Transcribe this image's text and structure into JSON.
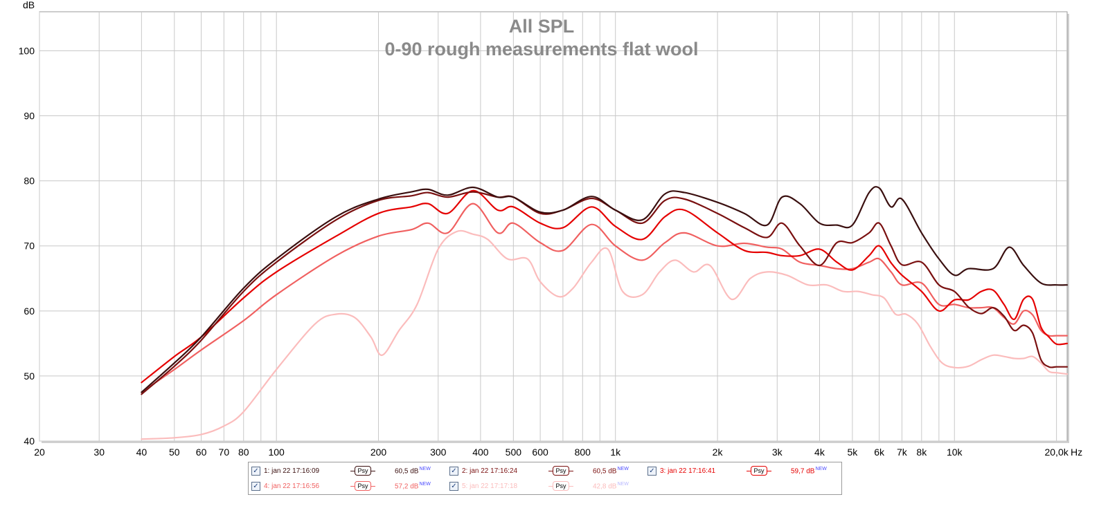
{
  "chart_data": {
    "type": "line",
    "title": "All SPL",
    "subtitle": "0-90 rough measurements flat wool",
    "ylabel": "dB",
    "xlabel": "Hz",
    "x_scale": "log",
    "xlim": [
      20,
      21500
    ],
    "ylim": [
      40,
      106
    ],
    "grid": true,
    "y_ticks": [
      40,
      50,
      60,
      70,
      80,
      90,
      100
    ],
    "x_ticks": [
      {
        "v": 20,
        "label": "20"
      },
      {
        "v": 30,
        "label": "30"
      },
      {
        "v": 40,
        "label": "40"
      },
      {
        "v": 50,
        "label": "50"
      },
      {
        "v": 60,
        "label": "60"
      },
      {
        "v": 70,
        "label": "70"
      },
      {
        "v": 80,
        "label": "80"
      },
      {
        "v": 90,
        "label": ""
      },
      {
        "v": 100,
        "label": "100"
      },
      {
        "v": 200,
        "label": "200"
      },
      {
        "v": 300,
        "label": "300"
      },
      {
        "v": 400,
        "label": "400"
      },
      {
        "v": 500,
        "label": "500"
      },
      {
        "v": 600,
        "label": "600"
      },
      {
        "v": 700,
        "label": ""
      },
      {
        "v": 800,
        "label": "800"
      },
      {
        "v": 900,
        "label": ""
      },
      {
        "v": 1000,
        "label": "1k"
      },
      {
        "v": 2000,
        "label": "2k"
      },
      {
        "v": 3000,
        "label": "3k"
      },
      {
        "v": 4000,
        "label": "4k"
      },
      {
        "v": 5000,
        "label": "5k"
      },
      {
        "v": 6000,
        "label": "6k"
      },
      {
        "v": 7000,
        "label": "7k"
      },
      {
        "v": 8000,
        "label": "8k"
      },
      {
        "v": 9000,
        "label": ""
      },
      {
        "v": 10000,
        "label": "10k"
      },
      {
        "v": 20000,
        "label": "20,0k"
      }
    ],
    "series": [
      {
        "name": "1: jan 22 17:16:09",
        "color": "#3a0f0f",
        "x": [
          40,
          50,
          60,
          80,
          100,
          150,
          200,
          250,
          280,
          320,
          380,
          450,
          500,
          600,
          700,
          850,
          1000,
          1200,
          1400,
          1600,
          2000,
          2400,
          2800,
          3100,
          3500,
          4000,
          4500,
          5000,
          5600,
          6000,
          6500,
          7000,
          8000,
          9000,
          10000,
          11000,
          13000,
          14500,
          16000,
          18000,
          20000,
          21500
        ],
        "y": [
          47.5,
          52,
          56,
          63.5,
          68,
          74.5,
          77.2,
          78.3,
          78.7,
          77.8,
          79,
          77.5,
          77.5,
          75.2,
          75.5,
          77.6,
          75.5,
          74,
          78,
          78.2,
          76.7,
          75,
          73.2,
          77.5,
          76.5,
          73.5,
          73.2,
          73.2,
          78.2,
          78.9,
          76,
          77.2,
          72,
          68,
          65.5,
          66.5,
          66.5,
          69.8,
          67,
          64.3,
          64,
          64
        ]
      },
      {
        "name": "2: jan 22 17:16:24",
        "color": "#7a1010",
        "x": [
          40,
          50,
          60,
          80,
          100,
          150,
          200,
          250,
          280,
          320,
          380,
          450,
          500,
          600,
          700,
          850,
          1000,
          1200,
          1400,
          1600,
          2000,
          2400,
          2800,
          3100,
          3500,
          4000,
          4500,
          5000,
          5600,
          6000,
          6500,
          7000,
          8000,
          9000,
          10000,
          11000,
          12000,
          13000,
          14000,
          15000,
          16000,
          17000,
          18000,
          19000,
          20000,
          21500
        ],
        "y": [
          47.2,
          51.5,
          55.5,
          63,
          67.5,
          74,
          77,
          77.7,
          78.2,
          77.5,
          78.3,
          77.5,
          77.5,
          75,
          75.5,
          77.3,
          75.5,
          73.5,
          77,
          77.2,
          75,
          72.8,
          71.3,
          73.5,
          70,
          67,
          70.5,
          70.5,
          72,
          73.5,
          70,
          67.1,
          67.5,
          64,
          63,
          60.6,
          59.6,
          60.5,
          59.2,
          57,
          57.8,
          56.6,
          52.5,
          51.4,
          51.4,
          51.4
        ]
      },
      {
        "name": "3: jan 22 17:16:41",
        "color": "#e50000",
        "x": [
          40,
          50,
          60,
          80,
          100,
          150,
          200,
          250,
          280,
          320,
          380,
          450,
          500,
          600,
          700,
          850,
          1000,
          1200,
          1400,
          1600,
          2000,
          2400,
          2800,
          3100,
          3500,
          4000,
          4500,
          5000,
          5600,
          6000,
          6500,
          7000,
          8000,
          9000,
          10000,
          11000,
          12000,
          13000,
          14000,
          15000,
          16000,
          17000,
          18000,
          19000,
          20000,
          21500
        ],
        "y": [
          49,
          53,
          56,
          62,
          66,
          71.5,
          75,
          76,
          76.5,
          75,
          78.5,
          75.5,
          76,
          73.5,
          72.8,
          76,
          73,
          71,
          74.5,
          75.5,
          72,
          69.3,
          69,
          68.5,
          68.5,
          69.5,
          67.5,
          66.3,
          68.5,
          70,
          67.4,
          65.5,
          63,
          60,
          61.7,
          61.7,
          63,
          63.2,
          61,
          58.7,
          61.8,
          61.8,
          57.5,
          56,
          54.9,
          55
        ]
      },
      {
        "name": "4: jan 22 17:16:56",
        "color": "#f06060",
        "x": [
          40,
          50,
          60,
          80,
          100,
          150,
          200,
          250,
          280,
          320,
          380,
          450,
          500,
          600,
          700,
          850,
          1000,
          1200,
          1400,
          1600,
          2000,
          2400,
          2800,
          3100,
          3500,
          4000,
          4500,
          5000,
          5600,
          6000,
          6500,
          7000,
          8000,
          9000,
          10000,
          11000,
          12000,
          13000,
          14000,
          15000,
          16000,
          17000,
          18000,
          19000,
          20000,
          21500
        ],
        "y": [
          47.5,
          51,
          54,
          58.5,
          62.5,
          68.5,
          71.5,
          72.5,
          73.5,
          72,
          76.5,
          72,
          73.5,
          70.5,
          69.3,
          73.3,
          70,
          67.8,
          70.5,
          72,
          70,
          70.4,
          69.8,
          69.5,
          67.5,
          67,
          66.5,
          66.5,
          67.5,
          68,
          66,
          64,
          64.3,
          61,
          61,
          60.5,
          60.5,
          60.5,
          59,
          58,
          60,
          59.4,
          57,
          56.2,
          56.2,
          56.2
        ]
      },
      {
        "name": "5: jan 22 17:17:18",
        "color": "#fbbcbc",
        "x": [
          40,
          50,
          60,
          70,
          80,
          100,
          130,
          150,
          170,
          190,
          205,
          230,
          260,
          300,
          340,
          380,
          420,
          480,
          550,
          600,
          680,
          750,
          850,
          950,
          1050,
          1200,
          1350,
          1500,
          1700,
          1900,
          2200,
          2500,
          2800,
          3200,
          3700,
          4200,
          4700,
          5200,
          5700,
          6200,
          6700,
          7200,
          7800,
          8500,
          9200,
          10000,
          11000,
          12000,
          13000,
          14000,
          15000,
          16000,
          17000,
          18000,
          19000,
          20000,
          21500
        ],
        "y": [
          40.3,
          40.5,
          41,
          42.3,
          44.5,
          51,
          58,
          59.5,
          59,
          56,
          53.2,
          57,
          61,
          69.5,
          72.2,
          71.8,
          71,
          68,
          68,
          64.5,
          62.2,
          63.5,
          67.5,
          69.5,
          63,
          62.5,
          66,
          67.8,
          66,
          67,
          61.8,
          65,
          66,
          65.5,
          64,
          64,
          63,
          63,
          62.5,
          62,
          59.5,
          59.5,
          58,
          54.5,
          52,
          51.3,
          51.5,
          52.5,
          53.2,
          53,
          52.7,
          52.7,
          53,
          52,
          50.7,
          50.5,
          50.3
        ]
      }
    ]
  },
  "legend": {
    "items": [
      {
        "label": "1: jan 22 17:16:09",
        "psy": "Psy",
        "value": "60,5 dB",
        "new": "NEW",
        "color": "#3a0f0f"
      },
      {
        "label": "2: jan 22 17:16:24",
        "psy": "Psy",
        "value": "60,5 dB",
        "new": "NEW",
        "color": "#7a1010"
      },
      {
        "label": "3: jan 22 17:16:41",
        "psy": "Psy",
        "value": "59,7 dB",
        "new": "NEW",
        "color": "#e50000"
      },
      {
        "label": "4: jan 22 17:16:56",
        "psy": "Psy",
        "value": "57,2 dB",
        "new": "NEW",
        "color": "#f06060"
      },
      {
        "label": "5: jan 22 17:17:18",
        "psy": "Psy",
        "value": "42,8 dB",
        "new": "NEW",
        "color": "#fbbcbc"
      }
    ],
    "check_glyph": "✓"
  }
}
